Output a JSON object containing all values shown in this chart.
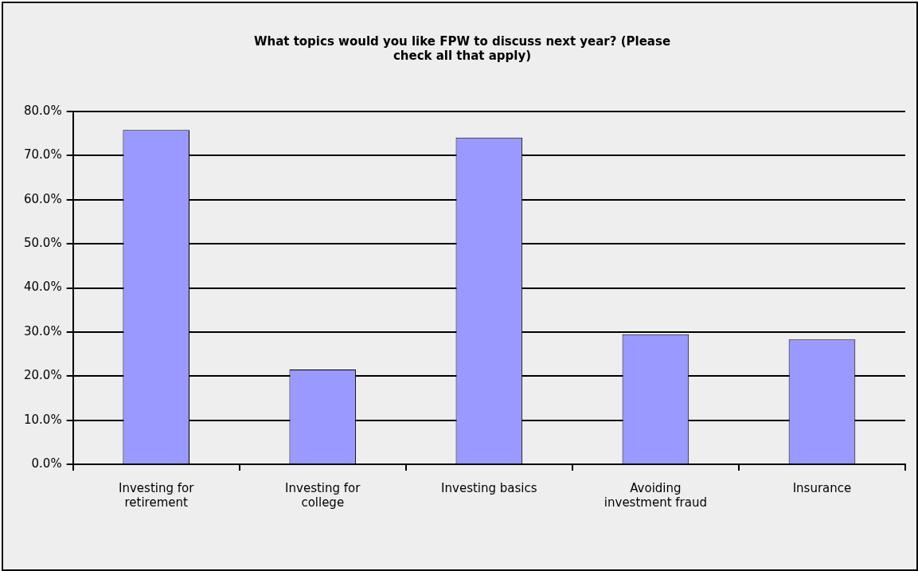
{
  "chart_data": {
    "type": "bar",
    "title": "What topics would you like FPW to discuss next year? (Please check all that apply)",
    "categories": [
      "Investing for retirement",
      "Investing for college",
      "Investing basics",
      "Avoiding investment fraud",
      "Insurance"
    ],
    "values": [
      75.8,
      21.5,
      74.1,
      29.5,
      28.3
    ],
    "color": "#9999ff",
    "ylim": [
      0,
      80
    ],
    "yticks": [
      {
        "value": 0,
        "label": "0.0%"
      },
      {
        "value": 10,
        "label": "10.0%"
      },
      {
        "value": 20,
        "label": "20.0%"
      },
      {
        "value": 30,
        "label": "30.0%"
      },
      {
        "value": 40,
        "label": "40.0%"
      },
      {
        "value": 50,
        "label": "50.0%"
      },
      {
        "value": 60,
        "label": "60.0%"
      },
      {
        "value": 70,
        "label": "70.0%"
      },
      {
        "value": 80,
        "label": "80.0%"
      }
    ],
    "grid": "y",
    "legend": false
  }
}
